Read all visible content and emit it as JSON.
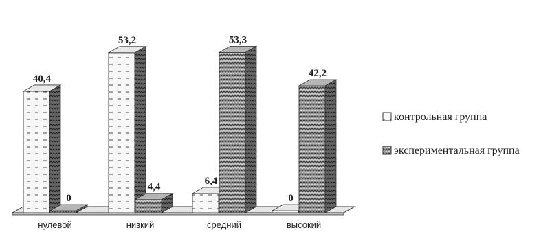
{
  "chart_data": {
    "type": "bar",
    "categories": [
      "нулевой",
      "низкий",
      "средний",
      "высокий"
    ],
    "series": [
      {
        "name": "контрольная группа",
        "values": [
          40.4,
          53.2,
          6.4,
          0
        ],
        "labels": [
          "40,4",
          "53,2",
          "6,4",
          "0"
        ]
      },
      {
        "name": "экспериментальная группа",
        "values": [
          0,
          4.4,
          53.3,
          42.2
        ],
        "labels": [
          "0",
          "4,4",
          "53,3",
          "42,2"
        ]
      }
    ],
    "ylim": [
      0,
      60
    ],
    "grid": false,
    "legend": "right",
    "style": "3d",
    "colors": {
      "series1": "#f4f4f4",
      "series2": "#8c8c8c",
      "outline": "#333333",
      "floor": "#e6e6e6"
    }
  }
}
